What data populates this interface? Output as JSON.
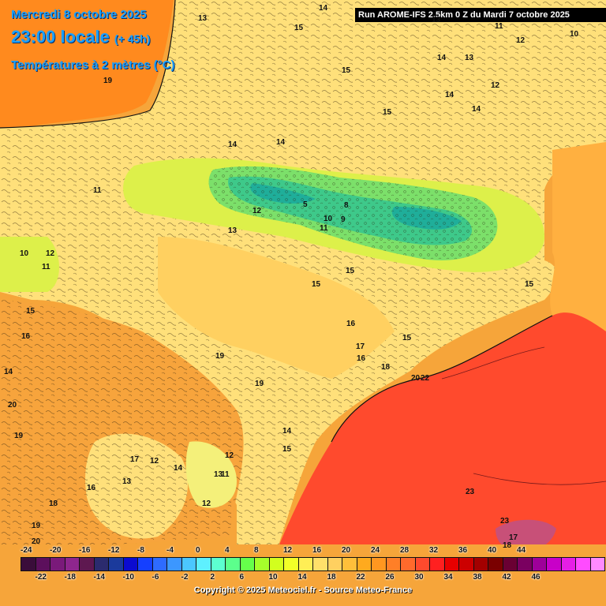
{
  "header": {
    "date": "Mercredi 8 octobre 2025",
    "time": "23:00 locale",
    "offset": "(+ 45h)",
    "variable": "Températures à 2 mètres (°C)",
    "run": "Run AROME-IFS 2.5km 0 Z du Mardi 7 octobre 2025"
  },
  "map_labels": [
    {
      "id": "t13a",
      "text": "13"
    },
    {
      "id": "t14a",
      "text": "14"
    },
    {
      "id": "t15a",
      "text": "15"
    },
    {
      "id": "t13b",
      "text": "13"
    },
    {
      "id": "t11a",
      "text": "11"
    },
    {
      "id": "t10a",
      "text": "10"
    },
    {
      "id": "t12a",
      "text": "12"
    },
    {
      "id": "t14b",
      "text": "14"
    },
    {
      "id": "t13c",
      "text": "13"
    },
    {
      "id": "t15b",
      "text": "15"
    },
    {
      "id": "t19a",
      "text": "19"
    },
    {
      "id": "t12b",
      "text": "12"
    },
    {
      "id": "t14c",
      "text": "14"
    },
    {
      "id": "t15c",
      "text": "15"
    },
    {
      "id": "t14d",
      "text": "14"
    },
    {
      "id": "t14e",
      "text": "14"
    },
    {
      "id": "t14f",
      "text": "14"
    },
    {
      "id": "t11b",
      "text": "11"
    },
    {
      "id": "t12c",
      "text": "12"
    },
    {
      "id": "t5",
      "text": "5"
    },
    {
      "id": "t10b",
      "text": "10"
    },
    {
      "id": "t8",
      "text": "8"
    },
    {
      "id": "t9",
      "text": "9"
    },
    {
      "id": "t11c",
      "text": "11"
    },
    {
      "id": "t13d",
      "text": "13"
    },
    {
      "id": "t12d",
      "text": "12"
    },
    {
      "id": "t10c",
      "text": "10"
    },
    {
      "id": "t12e",
      "text": "12"
    },
    {
      "id": "t11d",
      "text": "11"
    },
    {
      "id": "t15d",
      "text": "15"
    },
    {
      "id": "t15e",
      "text": "15"
    },
    {
      "id": "t15f",
      "text": "15"
    },
    {
      "id": "t16a",
      "text": "16"
    },
    {
      "id": "t16b",
      "text": "16"
    },
    {
      "id": "t15g",
      "text": "15"
    },
    {
      "id": "t17a",
      "text": "17"
    },
    {
      "id": "t16c",
      "text": "16"
    },
    {
      "id": "t18",
      "text": "18"
    },
    {
      "id": "t14g",
      "text": "14"
    },
    {
      "id": "t19b",
      "text": "19"
    },
    {
      "id": "t19c",
      "text": "19"
    },
    {
      "id": "t20",
      "text": "20"
    },
    {
      "id": "t22",
      "text": "22"
    },
    {
      "id": "t19d",
      "text": "19"
    },
    {
      "id": "t14h",
      "text": "14"
    },
    {
      "id": "t15h",
      "text": "15"
    },
    {
      "id": "t17b",
      "text": "17"
    },
    {
      "id": "t12f",
      "text": "12"
    },
    {
      "id": "t14i",
      "text": "14"
    },
    {
      "id": "t12g",
      "text": "12"
    },
    {
      "id": "t13e",
      "text": "13"
    },
    {
      "id": "t11e",
      "text": "11"
    },
    {
      "id": "t16d",
      "text": "16"
    },
    {
      "id": "t13f",
      "text": "13"
    },
    {
      "id": "t18b",
      "text": "18"
    },
    {
      "id": "t17c",
      "text": "17"
    },
    {
      "id": "t12h",
      "text": "12"
    },
    {
      "id": "t19e",
      "text": "19"
    },
    {
      "id": "t20b",
      "text": "20"
    },
    {
      "id": "t23a",
      "text": "23"
    },
    {
      "id": "t23b",
      "text": "23"
    },
    {
      "id": "t19f",
      "text": "19"
    },
    {
      "id": "t17d",
      "text": "17"
    },
    {
      "id": "t18c",
      "text": "18"
    },
    {
      "id": "t15i",
      "text": "15"
    },
    {
      "id": "t12i",
      "text": "12"
    },
    {
      "id": "t11f",
      "text": "11"
    },
    {
      "id": "t10d",
      "text": "10"
    },
    {
      "id": "t12j",
      "text": "12"
    },
    {
      "id": "t13g",
      "text": "13"
    },
    {
      "id": "t14j",
      "text": "14"
    },
    {
      "id": "t14k",
      "text": "14"
    },
    {
      "id": "t11g",
      "text": "11"
    },
    {
      "id": "t12k",
      "text": "12"
    },
    {
      "id": "t13h",
      "text": "13"
    },
    {
      "id": "t14l",
      "text": "14"
    },
    {
      "id": "t16e",
      "text": "16"
    }
  ],
  "legend": {
    "colors": [
      "#3a0d3a",
      "#5c0f5c",
      "#7a1a7a",
      "#8e268e",
      "#5e1850",
      "#2b2b6e",
      "#1b3a9c",
      "#0b0bd0",
      "#1540ff",
      "#2e6bff",
      "#3c97ff",
      "#4bc7ff",
      "#5ef0ff",
      "#5cffd0",
      "#5cff8c",
      "#66ff4b",
      "#a6ff2b",
      "#d2ff1e",
      "#f2ff28",
      "#ffee55",
      "#ffe06a",
      "#ffd060",
      "#ffbf3a",
      "#ffaa1e",
      "#ff9720",
      "#ff7f27",
      "#ff6a2c",
      "#ff4a2d",
      "#ff2020",
      "#e80000",
      "#cc0000",
      "#a30000",
      "#7a0000",
      "#6a0033",
      "#7a0060",
      "#9e0099",
      "#c800c8",
      "#e61ee6",
      "#ff4bff",
      "#ff8aff"
    ],
    "top_labels": [
      "-24",
      "-20",
      "-16",
      "-12",
      "-8",
      "-4",
      "0",
      "4",
      "8",
      "12",
      "16",
      "20",
      "24",
      "28",
      "32",
      "36",
      "40",
      "44"
    ],
    "bottom_labels": [
      "-22",
      "-18",
      "-14",
      "-10",
      "-6",
      "-2",
      "2",
      "6",
      "10",
      "14",
      "18",
      "22",
      "26",
      "30",
      "34",
      "38",
      "42",
      "46"
    ]
  },
  "copyright": "Copyright © 2025 Meteociel.fr - Source Meteo-France"
}
